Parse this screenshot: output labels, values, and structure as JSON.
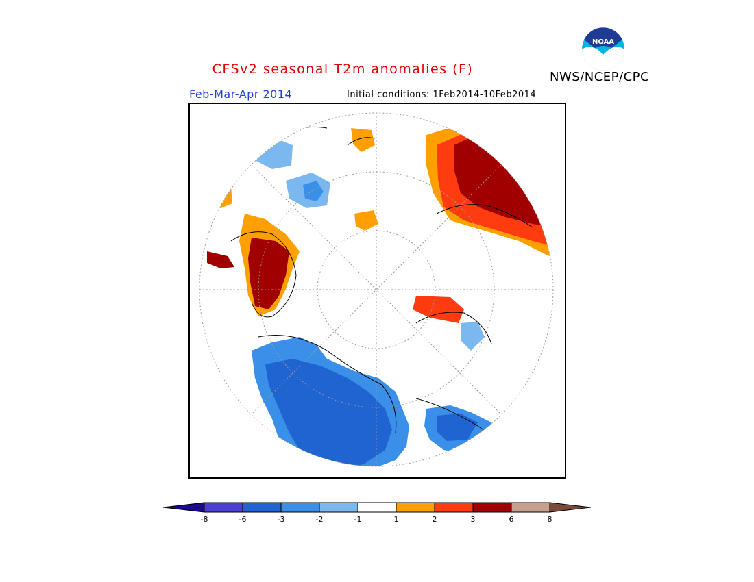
{
  "header": {
    "title": "CFSv2 seasonal T2m anomalies (F)",
    "agency": "NWS/NCEP/CPC",
    "logo_text": "NOAA",
    "season": "Feb-Mar-Apr 2014",
    "initial_conditions": "Initial conditions: 1Feb2014-10Feb2014"
  },
  "map": {
    "projection": "north-polar-stereographic",
    "variable": "2m temperature anomaly",
    "units": "F"
  },
  "legend": {
    "ticks": [
      "-8",
      "-6",
      "-3",
      "-2",
      "-1",
      "1",
      "2",
      "3",
      "6",
      "8"
    ],
    "colors": [
      "#1a0a8c",
      "#4a3fcf",
      "#1f64d0",
      "#3a8fe8",
      "#7cb8f0",
      "#ffffff",
      "#ffa000",
      "#ff3c10",
      "#a00000",
      "#c8a090",
      "#7a4a3a"
    ],
    "color_names": [
      "< -8",
      "-8 to -6",
      "-6 to -3",
      "-3 to -2",
      "-2 to -1",
      "-1 to 1",
      "1 to 2",
      "2 to 3",
      "3 to 6",
      "6 to 8",
      "> 8"
    ]
  }
}
